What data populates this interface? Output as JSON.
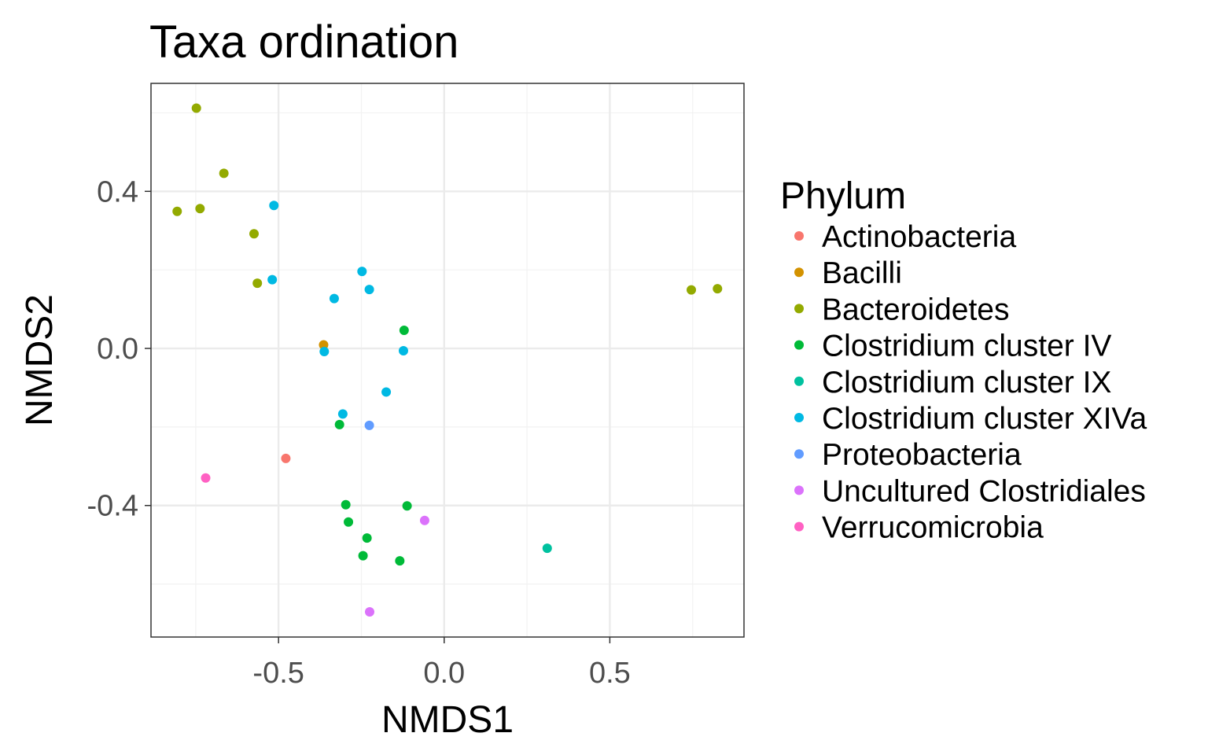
{
  "chart_data": {
    "type": "scatter",
    "title": "Taxa ordination",
    "xlabel": "NMDS1",
    "ylabel": "NMDS2",
    "xlim": [
      -0.885,
      0.905
    ],
    "ylim": [
      -0.735,
      0.675
    ],
    "x_ticks": [
      -0.5,
      0.0,
      0.5
    ],
    "x_tick_labels": [
      "-0.5",
      "0.0",
      "0.5"
    ],
    "y_ticks": [
      -0.4,
      0.0,
      0.4
    ],
    "y_tick_labels": [
      "-0.4",
      "0.0",
      "0.4"
    ],
    "grid": true,
    "legend": {
      "title": "Phylum",
      "position": "right"
    },
    "series": [
      {
        "name": "Actinobacteria",
        "color": "#F8766D",
        "points": [
          [
            -0.478,
            -0.28
          ]
        ]
      },
      {
        "name": "Bacilli",
        "color": "#D39200",
        "points": [
          [
            -0.364,
            0.009
          ]
        ]
      },
      {
        "name": "Bacteroidetes",
        "color": "#93AA00",
        "points": [
          [
            -0.748,
            0.612
          ],
          [
            -0.665,
            0.446
          ],
          [
            -0.806,
            0.349
          ],
          [
            -0.737,
            0.356
          ],
          [
            -0.574,
            0.292
          ],
          [
            -0.564,
            0.166
          ],
          [
            0.746,
            0.149
          ],
          [
            0.825,
            0.152
          ]
        ]
      },
      {
        "name": "Clostridium cluster IV",
        "color": "#00BA38",
        "points": [
          [
            -0.121,
            0.046
          ],
          [
            -0.316,
            -0.194
          ],
          [
            -0.297,
            -0.398
          ],
          [
            -0.289,
            -0.442
          ],
          [
            -0.233,
            -0.483
          ],
          [
            -0.245,
            -0.528
          ],
          [
            -0.134,
            -0.541
          ],
          [
            -0.112,
            -0.401
          ]
        ]
      },
      {
        "name": "Clostridium cluster IX",
        "color": "#00C19F",
        "points": [
          [
            0.311,
            -0.509
          ]
        ]
      },
      {
        "name": "Clostridium cluster XIVa",
        "color": "#00B9E3",
        "points": [
          [
            -0.514,
            0.364
          ],
          [
            -0.519,
            0.175
          ],
          [
            -0.248,
            0.196
          ],
          [
            -0.226,
            0.15
          ],
          [
            -0.332,
            0.127
          ],
          [
            -0.362,
            -0.008
          ],
          [
            -0.123,
            -0.006
          ],
          [
            -0.175,
            -0.111
          ],
          [
            -0.306,
            -0.167
          ]
        ]
      },
      {
        "name": "Proteobacteria",
        "color": "#619CFF",
        "points": [
          [
            -0.226,
            -0.196
          ]
        ]
      },
      {
        "name": "Uncultured Clostridiales",
        "color": "#DB72FB",
        "points": [
          [
            -0.059,
            -0.438
          ],
          [
            -0.225,
            -0.671
          ]
        ]
      },
      {
        "name": "Verrucomicrobia",
        "color": "#FF61C3",
        "points": [
          [
            -0.72,
            -0.33
          ]
        ]
      }
    ]
  }
}
